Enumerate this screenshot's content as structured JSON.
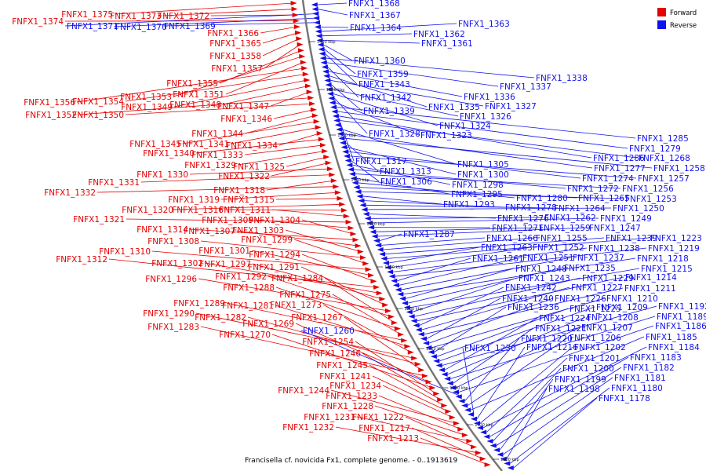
{
  "caption": "Francisella cf. novicida Fx1, complete genome. - 0..1913619",
  "colors": {
    "forward": "#e40000",
    "reverse": "#1111ee",
    "backbone": "#777777",
    "tick": "#000000"
  },
  "legend": [
    {
      "label": "Forward",
      "color": "#e40000"
    },
    {
      "label": "Reverse",
      "color": "#1111ee"
    }
  ],
  "ticks": [
    "1400 kbp",
    "1380 kbp",
    "1360 kbp",
    "1340 kbp",
    "1320 kbp",
    "1300 kbp",
    "1280 kbp",
    "1260 kbp",
    "1240 kbp",
    "1220 kbp",
    "1200 kbp"
  ],
  "forward_labels": [
    "FNFX1_1375",
    "FNFX1_1373",
    "FNFX1_1372",
    "FNFX1_1374",
    "FNFX1_1366",
    "FNFX1_1365",
    "FNFX1_1358",
    "FNFX1_1357",
    "FNFX1_1355",
    "FNFX1_1353",
    "FNFX1_1351",
    "FNFX1_1356",
    "FNFX1_1354",
    "FNFX1_1349",
    "FNFX1_1348",
    "FNFX1_1347",
    "FNFX1_1352",
    "FNFX1_1350",
    "FNFX1_1346",
    "FNFX1_1344",
    "FNFX1_1345",
    "FNFX1_1341",
    "FNFX1_1334",
    "FNFX1_1340",
    "FNFX1_1333",
    "FNFX1_1329",
    "FNFX1_1325",
    "FNFX1_1322",
    "FNFX1_1330",
    "FNFX1_1331",
    "FNFX1_1318",
    "FNFX1_1332",
    "FNFX1_1319",
    "FNFX1_1315",
    "FNFX1_1320",
    "FNFX1_1316",
    "FNFX1_1311",
    "FNFX1_1321",
    "FNFX1_1309",
    "FNFX1_1304",
    "FNFX1_1314",
    "FNFX1_1307",
    "FNFX1_1303",
    "FNFX1_1308",
    "FNFX1_1299",
    "FNFX1_1310",
    "FNFX1_1301",
    "FNFX1_1294",
    "FNFX1_1312",
    "FNFX1_1302",
    "FNFX1_1297",
    "FNFX1_1291",
    "FNFX1_1296",
    "FNFX1_1292",
    "FNFX1_1284",
    "FNFX1_1288",
    "FNFX1_1275",
    "FNFX1_1289",
    "FNFX1_1281",
    "FNFX1_1273",
    "FNFX1_1290",
    "FNFX1_1282",
    "FNFX1_1267",
    "FNFX1_1283",
    "FNFX1_1269",
    "FNFX1_1270",
    "FNFX1_1254",
    "FNFX1_1246",
    "FNFX1_1245",
    "FNFX1_1241",
    "FNFX1_1234",
    "FNFX1_1244",
    "FNFX1_1233",
    "FNFX1_1228",
    "FNFX1_1231",
    "FNFX1_1222",
    "FNFX1_1232",
    "FNFX1_1217",
    "FNFX1_1213"
  ],
  "reverse_labels": [
    "FNFX1_1368",
    "FNFX1_1367",
    "FNFX1_1371",
    "FNFX1_1370",
    "FNFX1_1369",
    "FNFX1_1364",
    "FNFX1_1363",
    "FNFX1_1362",
    "FNFX1_1361",
    "FNFX1_1360",
    "FNFX1_1359",
    "FNFX1_1343",
    "FNFX1_1338",
    "FNFX1_1337",
    "FNFX1_1342",
    "FNFX1_1336",
    "FNFX1_1335",
    "FNFX1_1327",
    "FNFX1_1339",
    "FNFX1_1326",
    "FNFX1_1324",
    "FNFX1_1328",
    "FNFX1_1323",
    "FNFX1_1285",
    "FNFX1_1279",
    "FNFX1_1286",
    "FNFX1_1268",
    "FNFX1_1317",
    "FNFX1_1305",
    "FNFX1_1277",
    "FNFX1_1258",
    "FNFX1_1313",
    "FNFX1_1300",
    "FNFX1_1274",
    "FNFX1_1257",
    "FNFX1_1306",
    "FNFX1_1298",
    "FNFX1_1272",
    "FNFX1_1256",
    "FNFX1_1295",
    "FNFX1_1280",
    "FNFX1_1265",
    "FNFX1_1253",
    "FNFX1_1293",
    "FNFX1_1278",
    "FNFX1_1264",
    "FNFX1_1250",
    "FNFX1_1276",
    "FNFX1_1262",
    "FNFX1_1249",
    "FNFX1_1271",
    "FNFX1_1259",
    "FNFX1_1247",
    "FNFX1_1287",
    "FNFX1_1266",
    "FNFX1_1255",
    "FNFX1_1239",
    "FNFX1_1223",
    "FNFX1_1263",
    "FNFX1_1252",
    "FNFX1_1238",
    "FNFX1_1219",
    "FNFX1_1261",
    "FNFX1_1251",
    "FNFX1_1237",
    "FNFX1_1218",
    "FNFX1_1248",
    "FNFX1_1235",
    "FNFX1_1215",
    "FNFX1_1243",
    "FNFX1_1229",
    "FNFX1_1214",
    "FNFX1_1242",
    "FNFX1_1227",
    "FNFX1_1211",
    "FNFX1_1240",
    "FNFX1_1226",
    "FNFX1_1210",
    "FNFX1_1236",
    "FNFX1_1225",
    "FNFX1_1209",
    "FNFX1_1192",
    "FNFX1_1224",
    "FNFX1_1208",
    "FNFX1_1189",
    "FNFX1_1221",
    "FNFX1_1207",
    "FNFX1_1186",
    "FNFX1_1260",
    "FNFX1_1220",
    "FNFX1_1206",
    "FNFX1_1185",
    "FNFX1_1230",
    "FNFX1_1216",
    "FNFX1_1202",
    "FNFX1_1184",
    "FNFX1_1201",
    "FNFX1_1183",
    "FNFX1_1200",
    "FNFX1_1182",
    "FNFX1_1199",
    "FNFX1_1181",
    "FNFX1_1198",
    "FNFX1_1180",
    "FNFX1_1178"
  ]
}
